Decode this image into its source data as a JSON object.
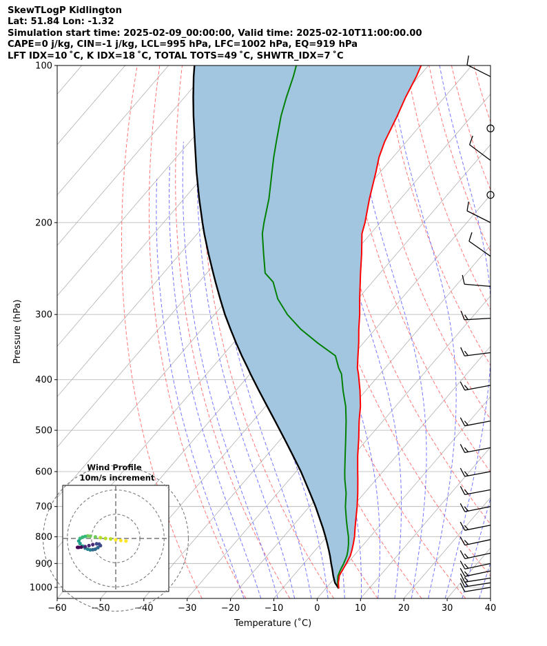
{
  "header": {
    "line1": "SkewTLogP Kidlington",
    "line2": "Lat: 51.84   Lon: -1.32",
    "line3": "Simulation start time: 2025-02-09_00:00:00, Valid time: 2025-02-10T11:00:00.00",
    "line4": "CAPE=0 j/kg, CIN=-1 j/kg, LCL=995 hPa, LFC=1002 hPa, EQ=919 hPa",
    "line5": "LFT IDX=10 ˚C, K IDX=18 ˚C, TOTAL TOTS=49 ˚C, SHWTR_IDX=7 ˚C"
  },
  "colors": {
    "temperature": "#ff0000",
    "dewpoint": "#008000",
    "parcel": "#000000",
    "shade": "#a3c6e0",
    "dry_adiabat": "#ff6666",
    "moist_adiabat": "#6666ff",
    "isotherm": "#b0b0b0",
    "grid": "#b0b0b0"
  },
  "chart_data": {
    "type": "line",
    "title": "",
    "xlabel": "Temperature (˚C)",
    "ylabel": "Pressure (hPa)",
    "xlim": [
      -60,
      40
    ],
    "ylim": [
      1050,
      100
    ],
    "y_scale": "log",
    "x_ticks": [
      "−60",
      "−50",
      "−40",
      "−30",
      "−20",
      "−10",
      "0",
      "10",
      "20",
      "30",
      "40"
    ],
    "y_ticks": [
      "100",
      "200",
      "300",
      "400",
      "500",
      "600",
      "700",
      "800",
      "900",
      "1000"
    ],
    "grid": true,
    "series": [
      {
        "role": "temperature",
        "pressure": [
          1005,
          980,
          950,
          925,
          900,
          870,
          850,
          825,
          800,
          770,
          740,
          700,
          660,
          620,
          600,
          560,
          520,
          480,
          450,
          420,
          390,
          380,
          360,
          340,
          320,
          300,
          280,
          260,
          250,
          230,
          210,
          200,
          180,
          160,
          150,
          140,
          125,
          115,
          105,
          100
        ],
        "temp": [
          3.0,
          1.8,
          0.6,
          0.2,
          -0.2,
          -0.8,
          -1.5,
          -2.5,
          -3.6,
          -5.2,
          -6.8,
          -9.0,
          -11.5,
          -14.3,
          -15.8,
          -18.9,
          -22.0,
          -25.5,
          -28.1,
          -31.3,
          -35.0,
          -36.4,
          -38.7,
          -41.1,
          -43.8,
          -46.5,
          -49.6,
          -52.8,
          -54.5,
          -58.0,
          -62.0,
          -63.5,
          -67.2,
          -71.0,
          -73.2,
          -75.0,
          -77.2,
          -79.0,
          -80.6,
          -81.7
        ]
      },
      {
        "role": "dewpoint",
        "pressure": [
          1005,
          980,
          950,
          925,
          900,
          870,
          850,
          825,
          800,
          770,
          740,
          700,
          660,
          620,
          600,
          560,
          520,
          480,
          450,
          420,
          390,
          380,
          360,
          340,
          320,
          300,
          280,
          260,
          250,
          230,
          210,
          200,
          180,
          160,
          150,
          140,
          125,
          115,
          105,
          100
        ],
        "temp": [
          3.0,
          1.6,
          0.3,
          -0.3,
          -0.8,
          -1.6,
          -2.4,
          -3.6,
          -5.0,
          -7.0,
          -9.0,
          -11.7,
          -14.2,
          -17.3,
          -18.8,
          -21.8,
          -25.0,
          -28.5,
          -31.5,
          -35.2,
          -38.9,
          -40.7,
          -43.9,
          -50.6,
          -57.2,
          -63.2,
          -68.5,
          -72.9,
          -76.5,
          -80.6,
          -85.0,
          -86.8,
          -90.4,
          -95.0,
          -97.5,
          -100.0,
          -104.0,
          -106.5,
          -109.0,
          -110.5
        ]
      },
      {
        "role": "parcel",
        "pressure": [
          1005,
          980,
          950,
          925,
          900,
          870,
          850,
          825,
          800,
          770,
          740,
          700,
          660,
          620,
          600,
          560,
          520,
          480,
          450,
          420,
          390,
          380,
          360,
          340,
          320,
          300,
          280,
          260,
          250,
          230,
          210,
          200,
          180,
          160,
          150,
          140,
          125,
          115,
          105,
          100
        ],
        "temp": [
          3.0,
          1.0,
          -0.8,
          -2.2,
          -3.7,
          -5.5,
          -6.8,
          -8.5,
          -10.3,
          -12.6,
          -15.1,
          -18.6,
          -22.5,
          -26.7,
          -28.9,
          -33.8,
          -39.1,
          -44.9,
          -49.6,
          -54.6,
          -59.9,
          -61.7,
          -65.5,
          -69.4,
          -73.4,
          -77.6,
          -81.8,
          -86.2,
          -88.5,
          -93.3,
          -98.4,
          -101.0,
          -106.5,
          -112.4,
          -115.5,
          -118.8,
          -124.2,
          -128.0,
          -132.0,
          -134.0
        ]
      }
    ],
    "wind_barbs": [
      {
        "p": 105,
        "u": -8,
        "v": 4
      },
      {
        "p": 132,
        "calm": true
      },
      {
        "p": 152,
        "u": -8,
        "v": 6
      },
      {
        "p": 177,
        "calm": true
      },
      {
        "p": 200,
        "u": -10,
        "v": 5
      },
      {
        "p": 232,
        "u": -10,
        "v": 7
      },
      {
        "p": 265,
        "u": -12,
        "v": 1
      },
      {
        "p": 305,
        "u": -17,
        "v": -1
      },
      {
        "p": 355,
        "u": -16,
        "v": -2
      },
      {
        "p": 410,
        "u": -16,
        "v": -3
      },
      {
        "p": 480,
        "u": -16,
        "v": -3
      },
      {
        "p": 540,
        "u": -16,
        "v": -3
      },
      {
        "p": 600,
        "u": -16,
        "v": -3
      },
      {
        "p": 650,
        "u": -16,
        "v": -3
      },
      {
        "p": 700,
        "u": -15,
        "v": -3
      },
      {
        "p": 760,
        "u": -15,
        "v": -3
      },
      {
        "p": 810,
        "u": -14,
        "v": -3
      },
      {
        "p": 860,
        "u": -14,
        "v": -3
      },
      {
        "p": 900,
        "u": -14,
        "v": -3
      },
      {
        "p": 930,
        "u": -14,
        "v": -3
      },
      {
        "p": 960,
        "u": -13,
        "v": -2
      },
      {
        "p": 980,
        "u": -13,
        "v": -2
      },
      {
        "p": 1000,
        "u": -12,
        "v": -2
      }
    ],
    "inset": {
      "title": "Wind Profile",
      "subtitle": "10m/s increment",
      "ring_step": 10,
      "rings": 3,
      "u": [
        4,
        2,
        0,
        -2,
        -4,
        -6,
        -8,
        -10,
        -11,
        -12,
        -13,
        -14,
        -14.5,
        -14,
        -13,
        -12,
        -11,
        -10,
        -9,
        -8,
        -7,
        -6,
        -6.5,
        -7.5,
        -9,
        -10.5,
        -12,
        -13.5,
        -14.5,
        -15
      ],
      "v": [
        -1,
        -0.8,
        -0.5,
        -0.2,
        0,
        0.3,
        0.6,
        0.9,
        1,
        0.8,
        0.5,
        0,
        -1,
        -2,
        -3,
        -3.8,
        -4.2,
        -4.5,
        -4.4,
        -4.2,
        -3.6,
        -2.8,
        -2.2,
        -2.1,
        -2.4,
        -2.8,
        -3.2,
        -3.4,
        -3.5,
        -3.5
      ]
    }
  }
}
